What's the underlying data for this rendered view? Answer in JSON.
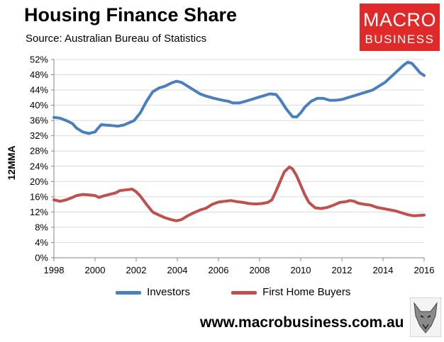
{
  "header": {
    "title": "Housing Finance Share",
    "subtitle": "Source: Australian Bureau of Statistics"
  },
  "logo": {
    "line1": "MACRO",
    "line2": "BUSINESS",
    "color": "#e02a2a"
  },
  "footer": {
    "url": "www.macrobusiness.com.au",
    "mascot_icon": "fox-icon"
  },
  "chart_data": {
    "type": "line",
    "title": "Housing Finance Share",
    "subtitle": "Source: Australian Bureau of Statistics",
    "xlabel": "",
    "ylabel": "12MMA",
    "xlim": [
      1998,
      2016
    ],
    "ylim": [
      0,
      52
    ],
    "x_ticks": [
      "1998",
      "2000",
      "2002",
      "2004",
      "2006",
      "2008",
      "2010",
      "2012",
      "2014",
      "2016"
    ],
    "y_ticks": [
      "0%",
      "4%",
      "8%",
      "12%",
      "16%",
      "20%",
      "24%",
      "28%",
      "32%",
      "36%",
      "40%",
      "44%",
      "48%",
      "52%"
    ],
    "grid": "horizontal",
    "legend": "bottom",
    "series": [
      {
        "name": "Investors",
        "color": "#4a7fbd",
        "points": [
          [
            1998.0,
            36.8
          ],
          [
            1998.3,
            36.6
          ],
          [
            1998.6,
            36.0
          ],
          [
            1998.9,
            35.2
          ],
          [
            1999.1,
            34.0
          ],
          [
            1999.4,
            33.0
          ],
          [
            1999.7,
            32.6
          ],
          [
            2000.0,
            33.0
          ],
          [
            2000.15,
            34.0
          ],
          [
            2000.3,
            34.9
          ],
          [
            2000.5,
            34.8
          ],
          [
            2000.8,
            34.7
          ],
          [
            2001.1,
            34.5
          ],
          [
            2001.4,
            34.8
          ],
          [
            2001.7,
            35.5
          ],
          [
            2001.9,
            36.0
          ],
          [
            2002.2,
            38.0
          ],
          [
            2002.5,
            41.0
          ],
          [
            2002.8,
            43.5
          ],
          [
            2003.1,
            44.5
          ],
          [
            2003.4,
            45.0
          ],
          [
            2003.7,
            45.8
          ],
          [
            2003.95,
            46.3
          ],
          [
            2004.2,
            46.0
          ],
          [
            2004.5,
            45.0
          ],
          [
            2004.8,
            44.0
          ],
          [
            2005.1,
            43.0
          ],
          [
            2005.4,
            42.4
          ],
          [
            2005.8,
            41.8
          ],
          [
            2006.2,
            41.3
          ],
          [
            2006.5,
            41.0
          ],
          [
            2006.7,
            40.6
          ],
          [
            2007.0,
            40.6
          ],
          [
            2007.3,
            41.0
          ],
          [
            2007.6,
            41.5
          ],
          [
            2007.9,
            42.0
          ],
          [
            2008.2,
            42.5
          ],
          [
            2008.5,
            43.0
          ],
          [
            2008.8,
            42.8
          ],
          [
            2009.0,
            41.5
          ],
          [
            2009.3,
            39.0
          ],
          [
            2009.6,
            37.0
          ],
          [
            2009.8,
            36.9
          ],
          [
            2010.0,
            38.0
          ],
          [
            2010.2,
            39.5
          ],
          [
            2010.5,
            41.0
          ],
          [
            2010.8,
            41.8
          ],
          [
            2011.1,
            41.8
          ],
          [
            2011.4,
            41.3
          ],
          [
            2011.7,
            41.3
          ],
          [
            2012.0,
            41.5
          ],
          [
            2012.3,
            42.0
          ],
          [
            2012.6,
            42.5
          ],
          [
            2012.9,
            43.0
          ],
          [
            2013.2,
            43.5
          ],
          [
            2013.5,
            44.0
          ],
          [
            2013.8,
            45.0
          ],
          [
            2014.1,
            46.0
          ],
          [
            2014.4,
            47.5
          ],
          [
            2014.7,
            49.0
          ],
          [
            2015.0,
            50.5
          ],
          [
            2015.2,
            51.3
          ],
          [
            2015.4,
            51.0
          ],
          [
            2015.6,
            49.8
          ],
          [
            2015.8,
            48.5
          ],
          [
            2016.0,
            47.8
          ]
        ]
      },
      {
        "name": "First Home Buyers",
        "color": "#c0504d",
        "points": [
          [
            1998.0,
            15.2
          ],
          [
            1998.3,
            14.8
          ],
          [
            1998.6,
            15.2
          ],
          [
            1998.9,
            15.8
          ],
          [
            1999.1,
            16.3
          ],
          [
            1999.4,
            16.6
          ],
          [
            1999.7,
            16.5
          ],
          [
            2000.0,
            16.3
          ],
          [
            2000.2,
            15.8
          ],
          [
            2000.4,
            16.2
          ],
          [
            2000.7,
            16.6
          ],
          [
            2001.0,
            17.0
          ],
          [
            2001.2,
            17.6
          ],
          [
            2001.5,
            17.8
          ],
          [
            2001.8,
            18.0
          ],
          [
            2002.0,
            17.3
          ],
          [
            2002.2,
            16.2
          ],
          [
            2002.5,
            14.0
          ],
          [
            2002.8,
            12.0
          ],
          [
            2003.1,
            11.2
          ],
          [
            2003.4,
            10.5
          ],
          [
            2003.7,
            10.0
          ],
          [
            2003.95,
            9.7
          ],
          [
            2004.2,
            10.0
          ],
          [
            2004.5,
            11.0
          ],
          [
            2004.8,
            11.8
          ],
          [
            2005.1,
            12.5
          ],
          [
            2005.4,
            13.0
          ],
          [
            2005.7,
            14.0
          ],
          [
            2006.0,
            14.6
          ],
          [
            2006.3,
            14.8
          ],
          [
            2006.6,
            15.0
          ],
          [
            2006.9,
            14.7
          ],
          [
            2007.2,
            14.5
          ],
          [
            2007.5,
            14.2
          ],
          [
            2007.8,
            14.1
          ],
          [
            2008.1,
            14.2
          ],
          [
            2008.4,
            14.5
          ],
          [
            2008.6,
            15.2
          ],
          [
            2008.8,
            17.5
          ],
          [
            2009.0,
            20.0
          ],
          [
            2009.2,
            22.5
          ],
          [
            2009.45,
            23.8
          ],
          [
            2009.6,
            23.3
          ],
          [
            2009.8,
            21.5
          ],
          [
            2010.0,
            19.0
          ],
          [
            2010.2,
            16.5
          ],
          [
            2010.4,
            14.5
          ],
          [
            2010.7,
            13.1
          ],
          [
            2011.0,
            12.9
          ],
          [
            2011.3,
            13.2
          ],
          [
            2011.6,
            13.8
          ],
          [
            2011.9,
            14.5
          ],
          [
            2012.2,
            14.7
          ],
          [
            2012.4,
            15.0
          ],
          [
            2012.6,
            14.8
          ],
          [
            2012.8,
            14.3
          ],
          [
            2013.1,
            14.0
          ],
          [
            2013.4,
            13.8
          ],
          [
            2013.7,
            13.2
          ],
          [
            2014.0,
            12.9
          ],
          [
            2014.3,
            12.6
          ],
          [
            2014.6,
            12.3
          ],
          [
            2014.9,
            11.8
          ],
          [
            2015.2,
            11.3
          ],
          [
            2015.5,
            11.0
          ],
          [
            2015.8,
            11.1
          ],
          [
            2016.0,
            11.2
          ]
        ]
      }
    ]
  }
}
